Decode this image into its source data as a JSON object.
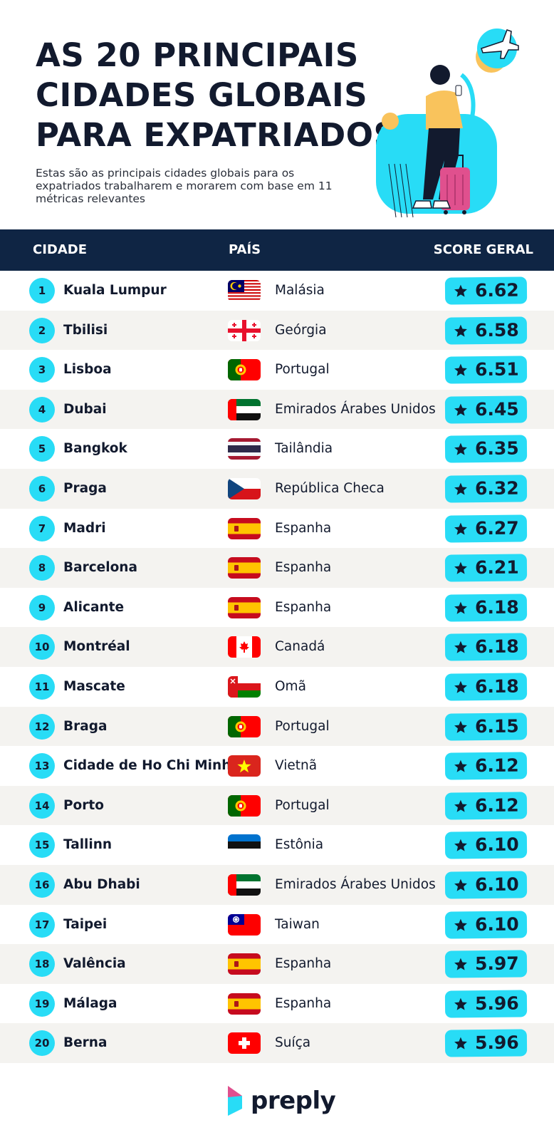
{
  "header": {
    "title": "AS 20 PRINCIPAIS CIDADES GLOBAIS PARA EXPATRIADOS",
    "subtitle": "Estas são as principais cidades globais para os expatriados trabalharem e morarem com base em 11 métricas relevantes"
  },
  "chart_data": {
    "type": "table",
    "columns": [
      "CIDADE",
      "PAÍS",
      "SCORE GERAL"
    ],
    "rows": [
      {
        "rank": "1",
        "city": "Kuala Lumpur",
        "country": "Malásia",
        "flag": "malaysia-flag",
        "score": "6.62"
      },
      {
        "rank": "2",
        "city": "Tbilisi",
        "country": "Geórgia",
        "flag": "georgia-flag",
        "score": "6.58"
      },
      {
        "rank": "3",
        "city": "Lisboa",
        "country": "Portugal",
        "flag": "portugal-flag",
        "score": "6.51"
      },
      {
        "rank": "4",
        "city": "Dubai",
        "country": "Emirados Árabes Unidos",
        "flag": "uae-flag",
        "score": "6.45"
      },
      {
        "rank": "5",
        "city": "Bangkok",
        "country": "Tailândia",
        "flag": "thailand-flag",
        "score": "6.35"
      },
      {
        "rank": "6",
        "city": "Praga",
        "country": "República Checa",
        "flag": "czech-flag",
        "score": "6.32"
      },
      {
        "rank": "7",
        "city": "Madri",
        "country": "Espanha",
        "flag": "spain-flag",
        "score": "6.27"
      },
      {
        "rank": "8",
        "city": "Barcelona",
        "country": "Espanha",
        "flag": "spain-flag",
        "score": "6.21"
      },
      {
        "rank": "9",
        "city": "Alicante",
        "country": "Espanha",
        "flag": "spain-flag",
        "score": "6.18"
      },
      {
        "rank": "10",
        "city": "Montréal",
        "country": "Canadá",
        "flag": "canada-flag",
        "score": "6.18"
      },
      {
        "rank": "11",
        "city": "Mascate",
        "country": "Omã",
        "flag": "oman-flag",
        "score": "6.18"
      },
      {
        "rank": "12",
        "city": "Braga",
        "country": "Portugal",
        "flag": "portugal-flag",
        "score": "6.15"
      },
      {
        "rank": "13",
        "city": "Cidade de Ho Chi Minh",
        "country": "Vietnã",
        "flag": "vietnam-flag",
        "score": "6.12"
      },
      {
        "rank": "14",
        "city": "Porto",
        "country": "Portugal",
        "flag": "portugal-flag",
        "score": "6.12"
      },
      {
        "rank": "15",
        "city": "Tallinn",
        "country": "Estônia",
        "flag": "estonia-flag",
        "score": "6.10"
      },
      {
        "rank": "16",
        "city": "Abu Dhabi",
        "country": "Emirados Árabes Unidos",
        "flag": "uae-flag",
        "score": "6.10"
      },
      {
        "rank": "17",
        "city": "Taipei",
        "country": "Taiwan",
        "flag": "taiwan-flag",
        "score": "6.10"
      },
      {
        "rank": "18",
        "city": "Valência",
        "country": "Espanha",
        "flag": "spain-flag",
        "score": "5.97"
      },
      {
        "rank": "19",
        "city": "Málaga",
        "country": "Espanha",
        "flag": "spain-flag",
        "score": "5.96"
      },
      {
        "rank": "20",
        "city": "Berna",
        "country": "Suíça",
        "flag": "switzerland-flag",
        "score": "5.96"
      }
    ]
  },
  "icons": {
    "score": "star-icon",
    "illustration": "traveler-with-suitcase-and-plane",
    "brand_mark": "preply-logo-icon"
  },
  "colors": {
    "navy": "#0f2544",
    "cyan": "#28dcf6",
    "alt_row": "#f4f3f0",
    "text": "#121a2e"
  },
  "brand": {
    "name": "preply"
  }
}
